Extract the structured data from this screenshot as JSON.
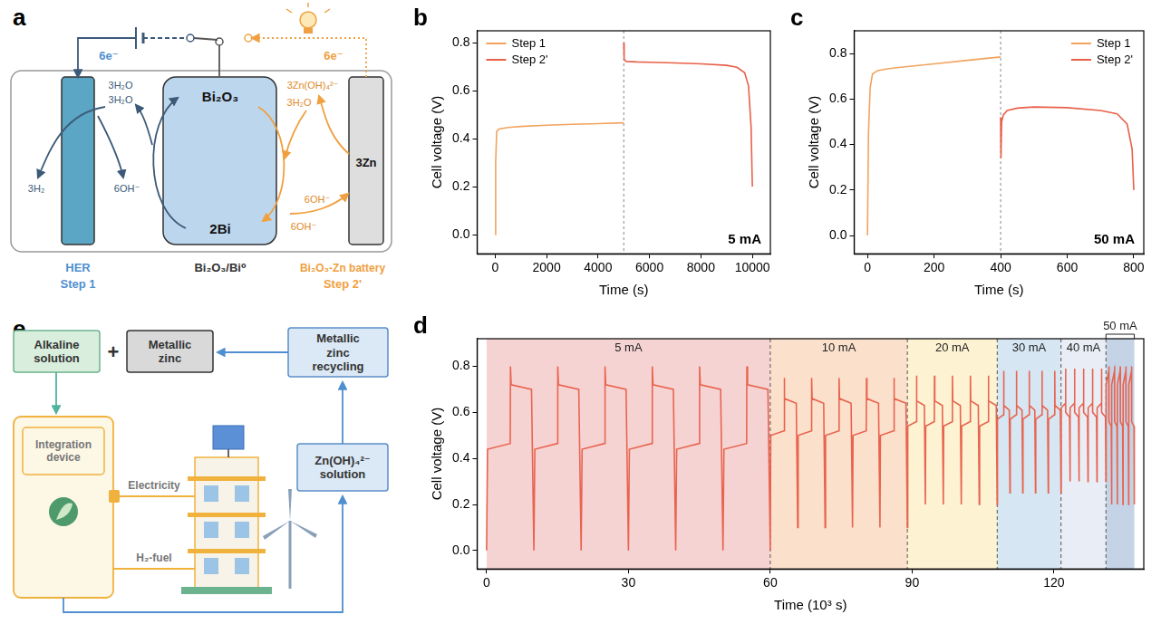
{
  "diagram_a": {
    "panel": "a",
    "electron_left": "6e⁻",
    "electron_right": "6e⁻",
    "her_h2o_top": "3H₂O",
    "her_h2o_bottom": "3H₂O",
    "her_h2": "3H₂",
    "her_oh": "6OH⁻",
    "center_top": "Bi₂O₃",
    "center_bottom": "2Bi",
    "battery_zincate": "3Zn(OH)₄²⁻",
    "battery_h2o": "3H₂O",
    "battery_oh_top": "6OH⁻",
    "battery_oh_bottom": "6OH⁻",
    "zinc": "3Zn",
    "label_left": "HER",
    "label_left_step": "Step 1",
    "label_center": "Bi₂O₃/Bi⁰",
    "label_right": "Bi₂O₃-Zn battery",
    "label_right_step": "Step 2'"
  },
  "diagram_e": {
    "panel": "e",
    "alkaline": "Alkaline solution",
    "plus": "+",
    "metallic_zinc": "Metallic zinc",
    "recycling": "Metallic zinc recycling",
    "zincate": "Zn(OH)₄²⁻ solution",
    "device": "Integration device",
    "electricity": "Electricity",
    "fuel": "H₂-fuel"
  },
  "chart_data": [
    {
      "panel": "b",
      "type": "line",
      "x_label": "Time (s)",
      "y_label": "Cell voltage (V)",
      "annotation": "5 mA",
      "vline": 5000,
      "legend": "upper left",
      "grid": false,
      "xlim": [
        -700,
        10700
      ],
      "xticks": [
        0,
        2000,
        4000,
        6000,
        8000,
        10000
      ],
      "ylim": [
        -0.08,
        0.85
      ],
      "yticks": [
        {
          "value": 0,
          "label": "0.0"
        },
        {
          "value": 0.2,
          "label": "0.2"
        },
        {
          "value": 0.4,
          "label": "0.4"
        },
        {
          "value": 0.6,
          "label": "0.6"
        },
        {
          "value": 0.8,
          "label": "0.8"
        }
      ],
      "series": [
        {
          "name": "Step 1",
          "color": "#f2a35e",
          "x": [
            0,
            20,
            60,
            150,
            500,
            1000,
            2000,
            3000,
            4000,
            5000
          ],
          "values": [
            0,
            0.3,
            0.43,
            0.44,
            0.447,
            0.451,
            0.456,
            0.46,
            0.463,
            0.466
          ]
        },
        {
          "name": "Step 2'",
          "color": "#e8604a",
          "x": [
            5000,
            5015,
            5100,
            5500,
            6000,
            7000,
            8000,
            9000,
            9400,
            9700,
            9850,
            9950,
            10000
          ],
          "values": [
            0.8,
            0.73,
            0.722,
            0.72,
            0.719,
            0.716,
            0.712,
            0.706,
            0.698,
            0.675,
            0.62,
            0.45,
            0.2
          ]
        }
      ]
    },
    {
      "panel": "c",
      "type": "line",
      "x_label": "Time (s)",
      "y_label": "Cell voltage (V)",
      "annotation": "50 mA",
      "vline": 400,
      "legend": "upper right",
      "grid": false,
      "xlim": [
        -40,
        830
      ],
      "xticks": [
        0,
        200,
        400,
        600,
        800
      ],
      "ylim": [
        -0.08,
        0.9
      ],
      "yticks": [
        {
          "value": 0,
          "label": "0.0"
        },
        {
          "value": 0.2,
          "label": "0.2"
        },
        {
          "value": 0.4,
          "label": "0.4"
        },
        {
          "value": 0.6,
          "label": "0.6"
        },
        {
          "value": 0.8,
          "label": "0.8"
        }
      ],
      "series": [
        {
          "name": "Step 1",
          "color": "#f2a35e",
          "x": [
            0,
            3,
            8,
            15,
            30,
            60,
            100,
            200,
            300,
            400
          ],
          "values": [
            0,
            0.45,
            0.65,
            0.71,
            0.725,
            0.733,
            0.74,
            0.755,
            0.77,
            0.785
          ]
        },
        {
          "name": "Step 2'",
          "color": "#e8604a",
          "x": [
            400,
            401,
            403,
            408,
            420,
            450,
            500,
            600,
            700,
            750,
            780,
            795,
            800
          ],
          "values": [
            0.52,
            0.34,
            0.5,
            0.53,
            0.55,
            0.56,
            0.565,
            0.562,
            0.55,
            0.535,
            0.49,
            0.38,
            0.2
          ]
        }
      ]
    },
    {
      "panel": "d",
      "type": "line",
      "x_label": "Time (10³ s)",
      "y_label": "Cell voltage (V)",
      "grid": false,
      "xlim": [
        -2,
        139
      ],
      "xticks": [
        0,
        30,
        60,
        90,
        120
      ],
      "ylim": [
        -0.08,
        0.92
      ],
      "yticks": [
        {
          "value": 0,
          "label": "0.0"
        },
        {
          "value": 0.2,
          "label": "0.2"
        },
        {
          "value": 0.4,
          "label": "0.4"
        },
        {
          "value": 0.6,
          "label": "0.6"
        },
        {
          "value": 0.8,
          "label": "0.8"
        }
      ],
      "regions": [
        {
          "label": "5 mA",
          "start": 0,
          "end": 60,
          "color": "#f6d3d3"
        },
        {
          "label": "10 mA",
          "start": 60,
          "end": 89,
          "color": "#fbe0cc"
        },
        {
          "label": "20 mA",
          "start": 89,
          "end": 108,
          "color": "#fdf2d2"
        },
        {
          "label": "30 mA",
          "start": 108,
          "end": 121.5,
          "color": "#d6e6f2"
        },
        {
          "label": "40 mA",
          "start": 121.5,
          "end": 131,
          "color": "#e9eef6"
        },
        {
          "label": "50 mA",
          "start": 131,
          "end": 137,
          "color": "#c5d3e6"
        }
      ],
      "series": [
        {
          "color": "#e8644f",
          "x": [
            0,
            0.2,
            5,
            5.05,
            5.2,
            9.5,
            10,
            10.2,
            15,
            15.05,
            15.2,
            19.5,
            20,
            20.2,
            25,
            25.05,
            25.2,
            29.5,
            30,
            30.2,
            35,
            35.05,
            35.2,
            39.5,
            40,
            40.2,
            45,
            45.05,
            45.2,
            49.5,
            50,
            50.2,
            55,
            55.05,
            55.2,
            59.5,
            60,
            60.1,
            62.9,
            62.95,
            63.05,
            65.5,
            65.8,
            65.9,
            68.7,
            68.75,
            68.85,
            71.3,
            71.6,
            71.7,
            74.5,
            74.55,
            74.65,
            77.1,
            77.4,
            77.5,
            80.3,
            80.35,
            80.45,
            82.9,
            83.2,
            83.3,
            86.1,
            86.15,
            86.25,
            88.7,
            89,
            89.08,
            90.9,
            90.93,
            91,
            92.6,
            92.8,
            92.88,
            94.7,
            94.73,
            94.8,
            96.4,
            96.6,
            96.68,
            98.5,
            98.53,
            98.6,
            100.2,
            100.4,
            100.48,
            102.3,
            102.33,
            102.4,
            104,
            104.2,
            104.28,
            106.1,
            106.13,
            106.2,
            107.8,
            108,
            108.05,
            109.35,
            109.37,
            109.42,
            110.55,
            110.7,
            110.75,
            112.05,
            112.07,
            112.12,
            113.25,
            113.4,
            113.45,
            114.75,
            114.77,
            114.82,
            115.95,
            116.1,
            116.15,
            117.45,
            117.47,
            117.52,
            118.65,
            118.8,
            118.85,
            120.15,
            120.17,
            120.22,
            121.35,
            121.5,
            121.54,
            122.45,
            122.47,
            122.5,
            123.3,
            123.4,
            123.44,
            124.35,
            124.37,
            124.4,
            125.2,
            125.3,
            125.34,
            126.25,
            126.27,
            126.3,
            127.1,
            127.2,
            127.24,
            128.15,
            128.17,
            128.2,
            129,
            129.1,
            129.14,
            130.05,
            130.07,
            130.1,
            130.9,
            131,
            131.03,
            131.6,
            131.62,
            131.65,
            132.13,
            132.2,
            132.23,
            132.8,
            132.82,
            132.85,
            133.33,
            133.4,
            133.43,
            134,
            134.02,
            134.05,
            134.53,
            134.6,
            134.63,
            135.2,
            135.22,
            135.25,
            135.73,
            135.8,
            135.83,
            136.4,
            136.42,
            136.45,
            136.93,
            137
          ],
          "values": [
            0,
            0.44,
            0.465,
            0.8,
            0.72,
            0.7,
            0,
            0.44,
            0.465,
            0.8,
            0.72,
            0.7,
            0,
            0.44,
            0.465,
            0.8,
            0.72,
            0.7,
            0,
            0.44,
            0.465,
            0.8,
            0.72,
            0.7,
            0,
            0.44,
            0.465,
            0.8,
            0.72,
            0.7,
            0,
            0.44,
            0.465,
            0.8,
            0.72,
            0.7,
            0,
            0.5,
            0.52,
            0.75,
            0.66,
            0.64,
            0.1,
            0.5,
            0.52,
            0.75,
            0.66,
            0.64,
            0.1,
            0.5,
            0.52,
            0.75,
            0.66,
            0.64,
            0.1,
            0.5,
            0.52,
            0.75,
            0.66,
            0.64,
            0.1,
            0.5,
            0.52,
            0.75,
            0.66,
            0.64,
            0.1,
            0.54,
            0.56,
            0.76,
            0.65,
            0.63,
            0.2,
            0.54,
            0.56,
            0.76,
            0.65,
            0.63,
            0.2,
            0.54,
            0.56,
            0.76,
            0.65,
            0.63,
            0.2,
            0.54,
            0.56,
            0.76,
            0.65,
            0.63,
            0.2,
            0.54,
            0.56,
            0.76,
            0.65,
            0.63,
            0.2,
            0.57,
            0.59,
            0.78,
            0.63,
            0.61,
            0.25,
            0.57,
            0.59,
            0.78,
            0.63,
            0.61,
            0.25,
            0.57,
            0.59,
            0.78,
            0.63,
            0.61,
            0.25,
            0.57,
            0.59,
            0.78,
            0.63,
            0.61,
            0.25,
            0.57,
            0.59,
            0.78,
            0.63,
            0.61,
            0.25,
            0.62,
            0.64,
            0.79,
            0.6,
            0.58,
            0.3,
            0.62,
            0.64,
            0.79,
            0.6,
            0.58,
            0.3,
            0.62,
            0.64,
            0.79,
            0.6,
            0.58,
            0.3,
            0.62,
            0.64,
            0.79,
            0.6,
            0.58,
            0.3,
            0.62,
            0.64,
            0.79,
            0.6,
            0.58,
            0.3,
            0.72,
            0.78,
            0.8,
            0.56,
            0.54,
            0.2,
            0.72,
            0.78,
            0.8,
            0.56,
            0.54,
            0.2,
            0.72,
            0.78,
            0.8,
            0.56,
            0.54,
            0.2,
            0.72,
            0.78,
            0.8,
            0.56,
            0.54,
            0.2,
            0.72,
            0.78,
            0.8,
            0.56,
            0.54,
            0.2
          ]
        }
      ]
    }
  ]
}
